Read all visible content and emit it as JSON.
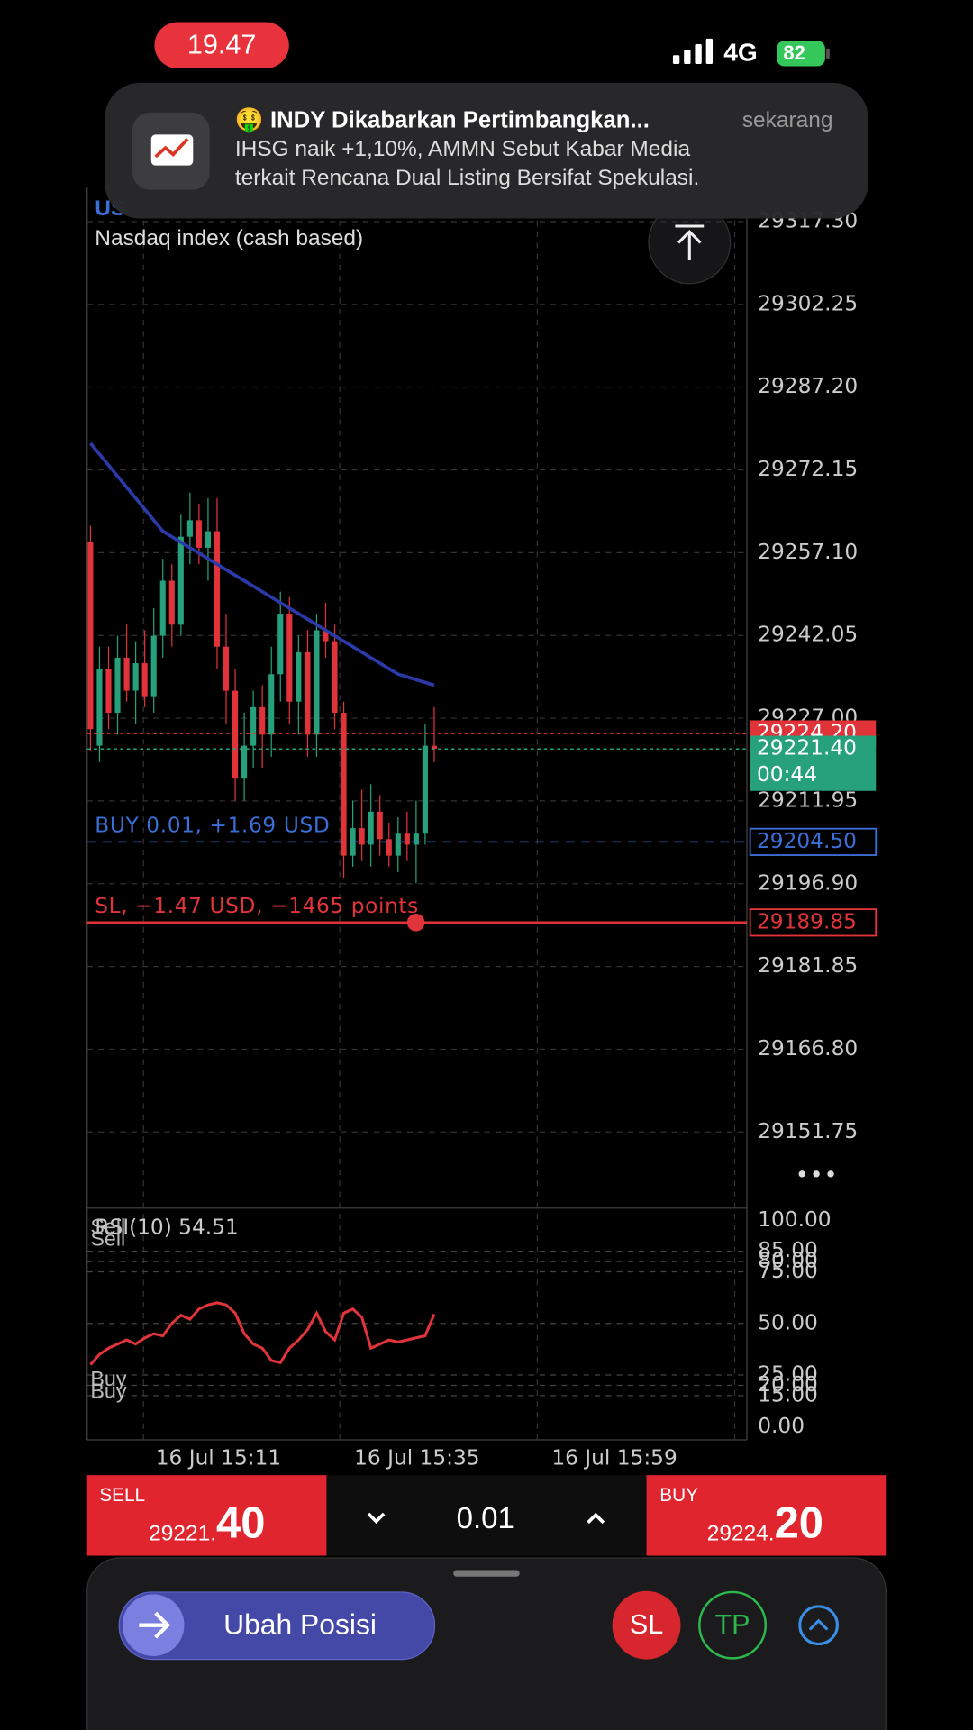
{
  "status_bar": {
    "time": "19.47",
    "network": "4G",
    "battery": "82"
  },
  "notification": {
    "title": "🤑 INDY Dikabarkan Pertimbangkan...",
    "time": "sekarang",
    "body_lines": [
      "IHSG naik +1,10%, AMMN Sebut Kabar Media",
      "terkait Rencana Dual Listing Bersifat Spekulasi."
    ]
  },
  "chart_data": [
    {
      "type": "candlestick",
      "title": "US",
      "subtitle": "Nasdaq index (cash based)",
      "up_color": "#26a17b",
      "down_color": "#e0343a",
      "ma_color": "#2b3aa8",
      "open": [
        29259,
        29222,
        29236,
        29228,
        29238,
        29232,
        29237,
        29231,
        29242,
        29252,
        29244,
        29260,
        29263,
        29258,
        29261,
        29240,
        29232,
        29216,
        29222,
        29229,
        29224,
        29235,
        29246,
        29230,
        29239,
        29224,
        29243,
        29241,
        29228,
        29202,
        29207,
        29204,
        29210,
        29205,
        29202,
        29206,
        29204,
        29206,
        29222
      ],
      "high": [
        29262,
        29240,
        29240,
        29242,
        29244,
        29241,
        29243,
        29247,
        29256,
        29255,
        29264,
        29268,
        29266,
        29267,
        29267,
        29246,
        29236,
        29228,
        29232,
        29233,
        29240,
        29250,
        29249,
        29242,
        29243,
        29246,
        29248,
        29244,
        29230,
        29212,
        29214,
        29215,
        29213,
        29208,
        29209,
        29210,
        29212,
        29226,
        29229
      ],
      "low": [
        29221,
        29219,
        29225,
        29224,
        29230,
        29226,
        29229,
        29228,
        29238,
        29240,
        29242,
        29255,
        29255,
        29252,
        29236,
        29226,
        29212,
        29212,
        29218,
        29218,
        29220,
        29230,
        29226,
        29224,
        29220,
        29220,
        29238,
        29225,
        29198,
        29200,
        29201,
        29200,
        29202,
        29200,
        29199,
        29201,
        29197,
        29204,
        29219
      ],
      "close": [
        29225,
        29236,
        29228,
        29238,
        29232,
        29237,
        29231,
        29242,
        29252,
        29244,
        29260,
        29263,
        29258,
        29261,
        29240,
        29232,
        29216,
        29222,
        29229,
        29224,
        29235,
        29246,
        29230,
        29239,
        29224,
        29243,
        29241,
        29228,
        29202,
        29207,
        29204,
        29210,
        29205,
        29202,
        29206,
        29204,
        29206,
        29222,
        29221.4
      ],
      "ma": [
        29277,
        29275,
        29273,
        29271,
        29269,
        29267,
        29265,
        29263,
        29261,
        29260,
        29259,
        29258,
        29257,
        29256,
        29255,
        29254,
        29253,
        29252,
        29251,
        29250,
        29249,
        29248,
        29247,
        29246,
        29245,
        29244,
        29243,
        29242,
        29241,
        29240,
        29239,
        29238,
        29237,
        29236,
        29235,
        29234.5,
        29234,
        29233.5,
        29233
      ],
      "ylim": [
        29138.3,
        29323.5
      ],
      "yticks": [
        {
          "value": 29317.3,
          "label": "29317.30"
        },
        29302.25,
        {
          "value": 29287.2,
          "label": "29287.20"
        },
        29272.15,
        {
          "value": 29257.1,
          "label": "29257.10"
        },
        29242.05,
        {
          "value": 29227,
          "label": "29227.00"
        },
        29211.95,
        {
          "value": 29196.9,
          "label": "29196.90"
        },
        29181.85,
        {
          "value": 29166.8,
          "label": "29166.80"
        },
        29151.75
      ],
      "time_labels": [
        "16 Jul 15:11",
        "16 Jul 15:35",
        "16 Jul 15:59"
      ],
      "price_lines": [
        {
          "value": 29224.2,
          "label": "29224.20",
          "color": "#e0343a"
        },
        {
          "value": 29221.4,
          "label": "29221.40",
          "countdown": "00:44",
          "color": "#26a17b"
        },
        {
          "value": 29204.5,
          "label": "29204.50",
          "text": "BUY 0.01, +1.69 USD",
          "color": "#3b6fd6"
        },
        {
          "value": 29189.85,
          "label": "29189.85",
          "text": "SL, −1.47 USD, −1465 points",
          "color": "#e0343a"
        }
      ]
    },
    {
      "type": "line",
      "title": "RSI(10) 54.51",
      "color": "#e0343a",
      "values": [
        30,
        35,
        38,
        40,
        42,
        40,
        43,
        45,
        44,
        50,
        54,
        52,
        57,
        59,
        60,
        59,
        55,
        45,
        40,
        38,
        32,
        31,
        38,
        42,
        47,
        55,
        46,
        42,
        55,
        57,
        53,
        38,
        40,
        42,
        41,
        42,
        43,
        44,
        54.51
      ],
      "ylim": [
        0,
        100
      ],
      "yticks": [
        {
          "value": 100,
          "label": "100.00"
        },
        {
          "value": 85,
          "label": "85.00"
        },
        {
          "value": 80,
          "label": "80.00"
        },
        {
          "value": 75,
          "label": "75.00"
        },
        {
          "value": 50,
          "label": "50.00"
        },
        {
          "value": 25,
          "label": "25.00"
        },
        {
          "value": 20,
          "label": "20.00"
        },
        {
          "value": 15,
          "label": "15.00"
        },
        {
          "value": 0,
          "label": "0.00"
        }
      ],
      "upper_labels": [
        "Sell",
        "Sell"
      ],
      "lower_labels": [
        "Buy",
        "Buy"
      ]
    }
  ],
  "order_bar": {
    "sell": {
      "label": "SELL",
      "price": "29221.",
      "price_big": "40"
    },
    "volume": "0.01",
    "buy": {
      "label": "BUY",
      "price": "29224.",
      "price_big": "20"
    }
  },
  "actions": {
    "modify": "Ubah Posisi",
    "sl": "SL",
    "tp": "TP"
  }
}
